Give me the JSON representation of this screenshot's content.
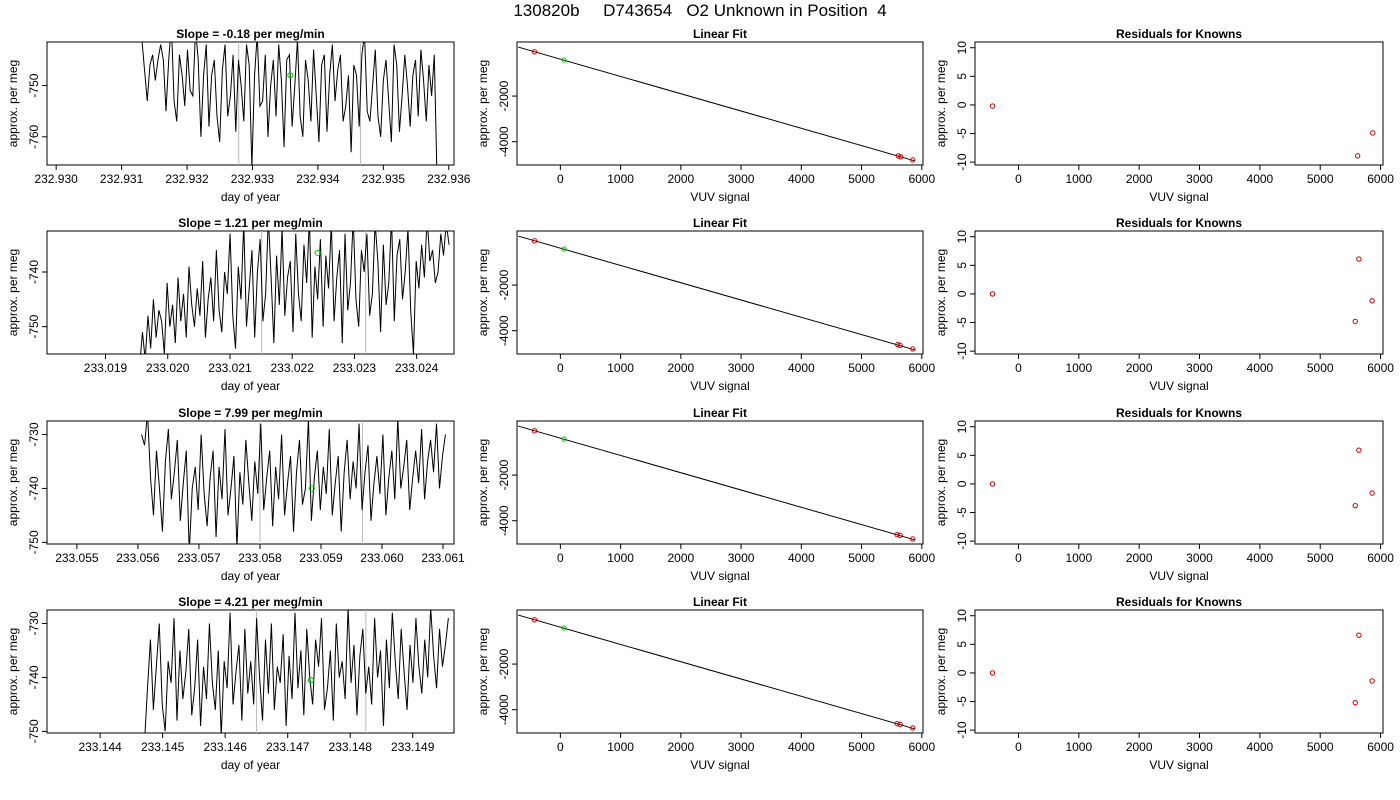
{
  "main_title": "130820b     D743654   O2 Unknown in Position  4",
  "chart_data": [
    {
      "type": "line",
      "title": "Slope =  -0.18  per meg/min",
      "xlabel": "day of year",
      "ylabel": "approx. per meg",
      "xlim": [
        232.92986,
        232.93608
      ],
      "ylim": [
        -765.5,
        -741.5
      ],
      "x_ticks": [
        232.93,
        232.931,
        232.932,
        232.933,
        232.934,
        232.935,
        232.936
      ],
      "x_tick_labels": [
        "232.930",
        "232.931",
        "232.932",
        "232.933",
        "232.934",
        "232.935",
        "232.936"
      ],
      "y_ticks": [
        -760,
        -750
      ],
      "y_tick_labels": [
        "-760",
        "-750"
      ],
      "trace_x_range": [
        232.93131,
        232.93582
      ],
      "trace_values": [
        -741,
        -747,
        -753,
        -746,
        -744,
        -749,
        -745,
        -742,
        -745,
        -755,
        -745,
        -738,
        -753,
        -757,
        -744,
        -748,
        -754,
        -743,
        -751,
        -752,
        -739,
        -745,
        -760,
        -748,
        -742,
        -758,
        -748,
        -745,
        -756,
        -761,
        -747,
        -742,
        -756,
        -752,
        -744,
        -759,
        -745,
        -750,
        -757,
        -742,
        -746,
        -766,
        -748,
        -740,
        -754,
        -753,
        -744,
        -760,
        -750,
        -745,
        -756,
        -742,
        -749,
        -762,
        -745,
        -744,
        -758,
        -750,
        -741,
        -756,
        -760,
        -745,
        -749,
        -757,
        -743,
        -752,
        -761,
        -746,
        -744,
        -759,
        -748,
        -742,
        -753,
        -747,
        -744,
        -757,
        -754,
        -748,
        -763,
        -746,
        -748,
        -758,
        -744,
        -740,
        -755,
        -757,
        -750,
        -743,
        -756,
        -760,
        -749,
        -745,
        -753,
        -761,
        -742,
        -746,
        -759,
        -752,
        -744,
        -750,
        -758,
        -748,
        -745,
        -756,
        -743,
        -749,
        -757,
        -746,
        -752,
        -744,
        -768
      ],
      "marker": {
        "x": 232.93358,
        "y": -748,
        "color": "#00cc00"
      },
      "vlines": [
        232.93279,
        232.93465
      ],
      "line_color": "#000000"
    },
    {
      "type": "scatter",
      "title": "Linear Fit",
      "xlabel": "VUV signal",
      "ylabel": "approx. per meg",
      "xlim": [
        -720,
        6020
      ],
      "ylim": [
        -5020,
        370
      ],
      "x_ticks": [
        0,
        1000,
        2000,
        3000,
        4000,
        5000,
        6000
      ],
      "x_tick_labels": [
        "0",
        "1000",
        "2000",
        "3000",
        "4000",
        "5000",
        "6000"
      ],
      "y_ticks": [
        -4000,
        -2000
      ],
      "y_tick_labels": [
        "-4000",
        "-2000"
      ],
      "fit_line": {
        "x": [
          -700,
          5880
        ],
        "y": [
          148,
          -4836
        ]
      },
      "known_points": [
        {
          "x": -430,
          "y": -60
        },
        {
          "x": 5610,
          "y": -4620
        },
        {
          "x": 5650,
          "y": -4660
        },
        {
          "x": 5850,
          "y": -4800
        }
      ],
      "unknown_points": [
        {
          "x": 60,
          "y": -420
        }
      ],
      "known_color": "#cc0000",
      "unknown_color": "#00cc00"
    },
    {
      "type": "scatter",
      "title": "Residuals for Knowns",
      "xlabel": "VUV signal",
      "ylabel": "approx. per meg",
      "xlim": [
        -720,
        6040
      ],
      "ylim": [
        -10.5,
        11
      ],
      "x_ticks": [
        0,
        1000,
        2000,
        3000,
        4000,
        5000,
        6000
      ],
      "x_tick_labels": [
        "0",
        "1000",
        "2000",
        "3000",
        "4000",
        "5000",
        "6000"
      ],
      "y_ticks": [
        -10,
        -5,
        0,
        5,
        10
      ],
      "y_tick_labels": [
        "-10",
        "-5",
        "0",
        "5",
        "10"
      ],
      "points": [
        {
          "x": -430,
          "y": -0.2
        },
        {
          "x": 5620,
          "y": -8.9
        },
        {
          "x": 5870,
          "y": -4.9
        }
      ],
      "point_color": "#cc0000"
    },
    {
      "type": "line",
      "title": "Slope =  1.21  per meg/min",
      "xlabel": "day of year",
      "ylabel": "approx. per meg",
      "xlim": [
        233.01806,
        233.0246
      ],
      "ylim": [
        -755,
        -732.5
      ],
      "x_ticks": [
        233.019,
        233.02,
        233.021,
        233.022,
        233.023,
        233.024
      ],
      "x_tick_labels": [
        "233.019",
        "233.020",
        "233.021",
        "233.022",
        "233.023",
        "233.024"
      ],
      "y_ticks": [
        -750,
        -740
      ],
      "y_tick_labels": [
        "-750",
        "-740"
      ],
      "trace_x_range": [
        233.01955,
        233.02452
      ],
      "trace_values": [
        -757,
        -751,
        -756,
        -748,
        -754,
        -745,
        -752,
        -747,
        -749,
        -755,
        -742,
        -750,
        -746,
        -753,
        -741,
        -749,
        -744,
        -752,
        -739,
        -746,
        -750,
        -743,
        -748,
        -738,
        -752,
        -745,
        -741,
        -749,
        -736,
        -747,
        -751,
        -740,
        -744,
        -733,
        -748,
        -754,
        -739,
        -745,
        -731,
        -750,
        -743,
        -736,
        -752,
        -740,
        -734,
        -749,
        -744,
        -730,
        -741,
        -753,
        -737,
        -746,
        -732,
        -748,
        -741,
        -738,
        -751,
        -733,
        -744,
        -749,
        -735,
        -742,
        -730,
        -752,
        -739,
        -745,
        -734,
        -750,
        -737,
        -743,
        -731,
        -749,
        -741,
        -736,
        -753,
        -733,
        -747,
        -742,
        -730,
        -745,
        -750,
        -736,
        -740,
        -733,
        -748,
        -744,
        -731,
        -738,
        -751,
        -735,
        -746,
        -742,
        -730,
        -749,
        -737,
        -734,
        -745,
        -740,
        -732,
        -747,
        -755,
        -738,
        -743,
        -735,
        -741,
        -730,
        -738,
        -736,
        -742,
        -740,
        -733,
        -737,
        -731,
        -735
      ],
      "marker": {
        "x": 233.02241,
        "y": -736.5,
        "color": "#00cc00"
      },
      "vlines": [
        233.02151,
        233.02318
      ],
      "line_color": "#000000"
    },
    {
      "type": "scatter",
      "title": "Linear Fit",
      "xlabel": "VUV signal",
      "ylabel": "approx. per meg",
      "xlim": [
        -720,
        6020
      ],
      "ylim": [
        -5020,
        370
      ],
      "x_ticks": [
        0,
        1000,
        2000,
        3000,
        4000,
        5000,
        6000
      ],
      "x_tick_labels": [
        "0",
        "1000",
        "2000",
        "3000",
        "4000",
        "5000",
        "6000"
      ],
      "y_ticks": [
        -4000,
        -2000
      ],
      "y_tick_labels": [
        "-4000",
        "-2000"
      ],
      "fit_line": {
        "x": [
          -700,
          5880
        ],
        "y": [
          148,
          -4836
        ]
      },
      "known_points": [
        {
          "x": -430,
          "y": -60
        },
        {
          "x": 5600,
          "y": -4610
        },
        {
          "x": 5640,
          "y": -4640
        },
        {
          "x": 5850,
          "y": -4800
        }
      ],
      "unknown_points": [
        {
          "x": 60,
          "y": -420
        }
      ],
      "known_color": "#cc0000",
      "unknown_color": "#00cc00"
    },
    {
      "type": "scatter",
      "title": "Residuals for Knowns",
      "xlabel": "VUV signal",
      "ylabel": "approx. per meg",
      "xlim": [
        -720,
        6040
      ],
      "ylim": [
        -10.5,
        11
      ],
      "x_ticks": [
        0,
        1000,
        2000,
        3000,
        4000,
        5000,
        6000
      ],
      "x_tick_labels": [
        "0",
        "1000",
        "2000",
        "3000",
        "4000",
        "5000",
        "6000"
      ],
      "y_ticks": [
        -10,
        -5,
        0,
        5,
        10
      ],
      "y_tick_labels": [
        "-10",
        "-5",
        "0",
        "5",
        "10"
      ],
      "points": [
        {
          "x": -430,
          "y": 0
        },
        {
          "x": 5580,
          "y": -4.8
        },
        {
          "x": 5640,
          "y": 6.1
        },
        {
          "x": 5860,
          "y": -1.2
        }
      ],
      "point_color": "#cc0000"
    },
    {
      "type": "line",
      "title": "Slope =  7.99  per meg/min",
      "xlabel": "day of year",
      "ylabel": "approx. per meg",
      "xlim": [
        233.05451,
        233.06118
      ],
      "ylim": [
        -750.3,
        -727.5
      ],
      "x_ticks": [
        233.055,
        233.056,
        233.057,
        233.058,
        233.059,
        233.06,
        233.061
      ],
      "x_tick_labels": [
        "233.055",
        "233.056",
        "233.057",
        "233.058",
        "233.059",
        "233.060",
        "233.061"
      ],
      "y_ticks": [
        -750,
        -740,
        -730
      ],
      "y_tick_labels": [
        "-750",
        "-740",
        "-730"
      ],
      "trace_x_range": [
        233.05606,
        233.06104
      ],
      "trace_values": [
        -730,
        -732,
        -726,
        -738,
        -745,
        -733,
        -740,
        -748,
        -735,
        -729,
        -742,
        -737,
        -731,
        -746,
        -739,
        -733,
        -752,
        -740,
        -736,
        -744,
        -730,
        -741,
        -747,
        -738,
        -733,
        -749,
        -736,
        -742,
        -729,
        -745,
        -740,
        -734,
        -751,
        -737,
        -743,
        -731,
        -739,
        -746,
        -735,
        -741,
        -728,
        -744,
        -738,
        -733,
        -747,
        -736,
        -742,
        -730,
        -745,
        -739,
        -734,
        -748,
        -737,
        -731,
        -743,
        -740,
        -727,
        -746,
        -738,
        -733,
        -744,
        -736,
        -741,
        -729,
        -745,
        -739,
        -734,
        -748,
        -737,
        -731,
        -742,
        -735,
        -740,
        -728,
        -744,
        -737,
        -732,
        -746,
        -739,
        -734,
        -741,
        -730,
        -745,
        -738,
        -733,
        -742,
        -727,
        -740,
        -736,
        -731,
        -744,
        -738,
        -733,
        -739,
        -729,
        -742,
        -735,
        -731,
        -737,
        -728,
        -740,
        -734,
        -730
      ],
      "marker": {
        "x": 233.05885,
        "y": -740,
        "color": "#00cc00"
      },
      "vlines": [
        233.058,
        233.05968
      ],
      "line_color": "#000000"
    },
    {
      "type": "scatter",
      "title": "Linear Fit",
      "xlabel": "VUV signal",
      "ylabel": "approx. per meg",
      "xlim": [
        -720,
        6020
      ],
      "ylim": [
        -5020,
        370
      ],
      "x_ticks": [
        0,
        1000,
        2000,
        3000,
        4000,
        5000,
        6000
      ],
      "x_tick_labels": [
        "0",
        "1000",
        "2000",
        "3000",
        "4000",
        "5000",
        "6000"
      ],
      "y_ticks": [
        -4000,
        -2000
      ],
      "y_tick_labels": [
        "-4000",
        "-2000"
      ],
      "fit_line": {
        "x": [
          -700,
          5880
        ],
        "y": [
          148,
          -4836
        ]
      },
      "known_points": [
        {
          "x": -430,
          "y": -60
        },
        {
          "x": 5590,
          "y": -4610
        },
        {
          "x": 5640,
          "y": -4640
        },
        {
          "x": 5850,
          "y": -4800
        }
      ],
      "unknown_points": [
        {
          "x": 60,
          "y": -420
        }
      ],
      "known_color": "#cc0000",
      "unknown_color": "#00cc00"
    },
    {
      "type": "scatter",
      "title": "Residuals for Knowns",
      "xlabel": "VUV signal",
      "ylabel": "approx. per meg",
      "xlim": [
        -720,
        6040
      ],
      "ylim": [
        -10.5,
        11
      ],
      "x_ticks": [
        0,
        1000,
        2000,
        3000,
        4000,
        5000,
        6000
      ],
      "x_tick_labels": [
        "0",
        "1000",
        "2000",
        "3000",
        "4000",
        "5000",
        "6000"
      ],
      "y_ticks": [
        -10,
        -5,
        0,
        5,
        10
      ],
      "y_tick_labels": [
        "-10",
        "-5",
        "0",
        "5",
        "10"
      ],
      "points": [
        {
          "x": -430,
          "y": 0
        },
        {
          "x": 5580,
          "y": -3.8
        },
        {
          "x": 5640,
          "y": 5.9
        },
        {
          "x": 5860,
          "y": -1.6
        }
      ],
      "point_color": "#cc0000"
    },
    {
      "type": "line",
      "title": "Slope =  4.21  per meg/min",
      "xlabel": "day of year",
      "ylabel": "approx. per meg",
      "xlim": [
        233.14315,
        233.14966
      ],
      "ylim": [
        -750.3,
        -727.5
      ],
      "x_ticks": [
        233.144,
        233.145,
        233.146,
        233.147,
        233.148,
        233.149
      ],
      "x_tick_labels": [
        "233.144",
        "233.145",
        "233.146",
        "233.147",
        "233.148",
        "233.149"
      ],
      "y_ticks": [
        -750,
        -740,
        -730
      ],
      "y_tick_labels": [
        "-750",
        "-740",
        "-730"
      ],
      "trace_x_range": [
        233.14471,
        233.14957
      ],
      "trace_values": [
        -752,
        -742,
        -733,
        -746,
        -738,
        -730,
        -745,
        -750,
        -737,
        -741,
        -729,
        -748,
        -735,
        -744,
        -739,
        -731,
        -747,
        -742,
        -733,
        -749,
        -738,
        -744,
        -730,
        -741,
        -746,
        -735,
        -751,
        -737,
        -742,
        -728,
        -745,
        -739,
        -734,
        -748,
        -731,
        -743,
        -737,
        -745,
        -729,
        -740,
        -748,
        -733,
        -743,
        -730,
        -746,
        -738,
        -741,
        -732,
        -749,
        -736,
        -744,
        -728,
        -742,
        -735,
        -747,
        -731,
        -740,
        -745,
        -733,
        -738,
        -729,
        -746,
        -742,
        -735,
        -748,
        -730,
        -740,
        -737,
        -744,
        -727,
        -741,
        -734,
        -747,
        -736,
        -731,
        -743,
        -738,
        -745,
        -729,
        -740,
        -735,
        -749,
        -733,
        -742,
        -728,
        -737,
        -744,
        -731,
        -739,
        -746,
        -734,
        -741,
        -729,
        -738,
        -743,
        -733,
        -740,
        -727,
        -736,
        -742,
        -731,
        -738,
        -734,
        -729
      ],
      "marker": {
        "x": 233.14737,
        "y": -740.5,
        "color": "#00cc00"
      },
      "vlines": [
        233.1465,
        233.14825
      ],
      "line_color": "#000000"
    },
    {
      "type": "scatter",
      "title": "Linear Fit",
      "xlabel": "VUV signal",
      "ylabel": "approx. per meg",
      "xlim": [
        -720,
        6020
      ],
      "ylim": [
        -5020,
        370
      ],
      "x_ticks": [
        0,
        1000,
        2000,
        3000,
        4000,
        5000,
        6000
      ],
      "x_tick_labels": [
        "0",
        "1000",
        "2000",
        "3000",
        "4000",
        "5000",
        "6000"
      ],
      "y_ticks": [
        -4000,
        -2000
      ],
      "y_tick_labels": [
        "-4000",
        "-2000"
      ],
      "fit_line": {
        "x": [
          -700,
          5880
        ],
        "y": [
          148,
          -4836
        ]
      },
      "known_points": [
        {
          "x": -430,
          "y": -60
        },
        {
          "x": 5590,
          "y": -4610
        },
        {
          "x": 5640,
          "y": -4640
        },
        {
          "x": 5850,
          "y": -4800
        }
      ],
      "unknown_points": [
        {
          "x": 60,
          "y": -420
        }
      ],
      "known_color": "#cc0000",
      "unknown_color": "#00cc00"
    },
    {
      "type": "scatter",
      "title": "Residuals for Knowns",
      "xlabel": "VUV signal",
      "ylabel": "approx. per meg",
      "xlim": [
        -720,
        6040
      ],
      "ylim": [
        -10.5,
        11
      ],
      "x_ticks": [
        0,
        1000,
        2000,
        3000,
        4000,
        5000,
        6000
      ],
      "x_tick_labels": [
        "0",
        "1000",
        "2000",
        "3000",
        "4000",
        "5000",
        "6000"
      ],
      "y_ticks": [
        -10,
        -5,
        0,
        5,
        10
      ],
      "y_tick_labels": [
        "-10",
        "-5",
        "0",
        "5",
        "10"
      ],
      "points": [
        {
          "x": -430,
          "y": 0
        },
        {
          "x": 5580,
          "y": -5.2
        },
        {
          "x": 5640,
          "y": 6.6
        },
        {
          "x": 5860,
          "y": -1.4
        }
      ],
      "point_color": "#cc0000"
    }
  ]
}
